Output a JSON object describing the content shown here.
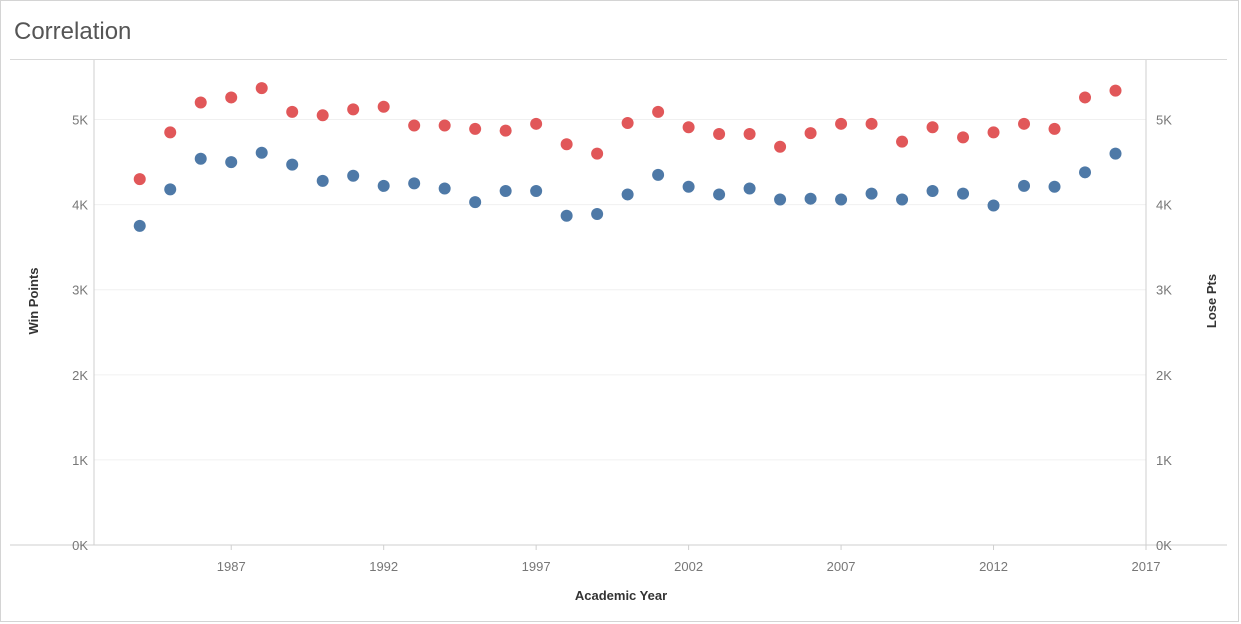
{
  "title": "Correlation",
  "colors": {
    "win": "#4e79a7",
    "lose": "#e15759",
    "grid": "#f0f0f0",
    "axis": "#cfcfcf"
  },
  "chart_data": {
    "type": "scatter",
    "title": "Correlation",
    "xlabel": "Academic Year",
    "ylabel": "Win Points",
    "y2label": "Lose Pts",
    "xlim": [
      1982.5,
      2017
    ],
    "ylim": [
      0,
      5700
    ],
    "x_ticks": [
      1987,
      1992,
      1997,
      2002,
      2007,
      2012,
      2017
    ],
    "y_ticks": [
      0,
      1000,
      2000,
      3000,
      4000,
      5000
    ],
    "y_tick_labels": [
      "0K",
      "1K",
      "2K",
      "3K",
      "4K",
      "5K"
    ],
    "grid": "horizontal",
    "x": [
      1984,
      1985,
      1986,
      1987,
      1988,
      1989,
      1990,
      1991,
      1992,
      1993,
      1994,
      1995,
      1996,
      1997,
      1998,
      1999,
      2000,
      2001,
      2002,
      2003,
      2004,
      2005,
      2006,
      2007,
      2008,
      2009,
      2010,
      2011,
      2012,
      2013,
      2014,
      2015,
      2016
    ],
    "series": [
      {
        "name": "Win Points",
        "axis": "left",
        "values": [
          3750,
          4180,
          4540,
          4500,
          4610,
          4470,
          4280,
          4340,
          4220,
          4250,
          4190,
          4030,
          4160,
          4160,
          3870,
          3890,
          4120,
          4350,
          4210,
          4120,
          4190,
          4060,
          4070,
          4060,
          4130,
          4060,
          4160,
          4130,
          3990,
          4220,
          4210,
          4380,
          4600
        ]
      },
      {
        "name": "Lose Pts",
        "axis": "right",
        "values": [
          4300,
          4850,
          5200,
          5260,
          5370,
          5090,
          5050,
          5120,
          5150,
          4930,
          4930,
          4890,
          4870,
          4950,
          4710,
          4600,
          4960,
          5090,
          4910,
          4830,
          4830,
          4680,
          4840,
          4950,
          4950,
          4740,
          4910,
          4790,
          4850,
          4950,
          4890,
          5260,
          5340
        ]
      }
    ]
  }
}
